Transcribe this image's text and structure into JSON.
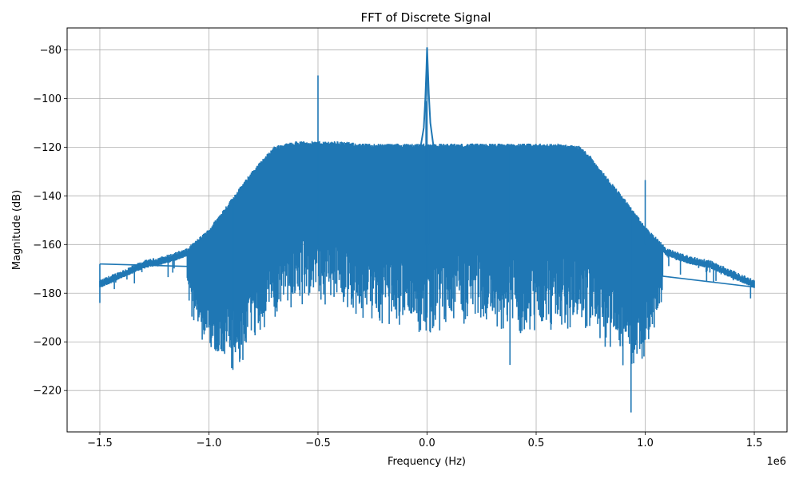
{
  "chart_data": {
    "type": "line",
    "title": "FFT of Discrete Signal",
    "xlabel": "Frequency (Hz)",
    "ylabel": "Magnitude (dB)",
    "x_offset_label": "1e6",
    "xlim": [
      -1.65,
      1.65
    ],
    "ylim": [
      -237,
      -71
    ],
    "x_scale_note": "x values in units of 1e6 Hz",
    "xticks": [
      -1.5,
      -1.0,
      -0.5,
      0.0,
      0.5,
      1.0,
      1.5
    ],
    "xtick_labels": [
      "−1.5",
      "−1.0",
      "−0.5",
      "0.0",
      "0.5",
      "1.0",
      "1.5"
    ],
    "yticks": [
      -80,
      -100,
      -120,
      -140,
      -160,
      -180,
      -200,
      -220
    ],
    "ytick_labels": [
      "−80",
      "−100",
      "−120",
      "−140",
      "−160",
      "−180",
      "−200",
      "−220"
    ],
    "grid": true,
    "line_color": "#1f77b4",
    "series": [
      {
        "upper_envelope": {
          "x": [
            -1.5,
            -1.4,
            -1.3,
            -1.2,
            -1.1,
            -1.0,
            -0.9,
            -0.8,
            -0.75,
            -0.7,
            -0.6,
            -0.5,
            -0.4,
            -0.3,
            -0.2,
            -0.1,
            0.0,
            0.1,
            0.2,
            0.3,
            0.4,
            0.5,
            0.6,
            0.7,
            0.75,
            0.8,
            0.9,
            1.0,
            1.1,
            1.2,
            1.3,
            1.4,
            1.5
          ],
          "y": [
            -176,
            -172,
            -168,
            -166,
            -163,
            -155,
            -143,
            -131,
            -126,
            -121,
            -119,
            -119,
            -119,
            -120,
            -120,
            -120,
            -120,
            -120,
            -120,
            -120,
            -120,
            -120,
            -120,
            -121,
            -125,
            -131,
            -142,
            -154,
            -163,
            -166,
            -168,
            -172,
            -176
          ]
        },
        "lower_envelope": {
          "x": [
            -1.1,
            -1.05,
            -1.0,
            -0.95,
            -0.9,
            -0.85,
            -0.8,
            -0.7,
            -0.6,
            -0.5,
            -0.4,
            -0.3,
            -0.2,
            -0.1,
            0.0,
            0.1,
            0.2,
            0.3,
            0.4,
            0.5,
            0.6,
            0.7,
            0.8,
            0.85,
            0.9,
            0.95,
            1.0,
            1.05,
            1.08
          ],
          "y": [
            -175,
            -195,
            -202,
            -205,
            -206,
            -203,
            -195,
            -185,
            -180,
            -178,
            -180,
            -185,
            -187,
            -190,
            -192,
            -188,
            -186,
            -188,
            -190,
            -192,
            -190,
            -188,
            -195,
            -200,
            -204,
            -206,
            -200,
            -190,
            -176
          ]
        },
        "spikes": [
          {
            "x": 0.0,
            "y": -79
          },
          {
            "x": -0.5,
            "y": -90.5
          },
          {
            "x": 1.0,
            "y": -133.5
          },
          {
            "x": -0.005,
            "y": -101
          },
          {
            "x": 0.008,
            "y": -119
          },
          {
            "x": 0.38,
            "y": -209.5
          },
          {
            "x": 0.935,
            "y": -229
          },
          {
            "x": -0.89,
            "y": -211.5
          },
          {
            "x": 0.0,
            "y": -190
          }
        ],
        "wrap_segments": [
          {
            "x": [
              -1.5,
              -1.1
            ],
            "y": [
              -168,
              -169
            ]
          },
          {
            "x": [
              1.08,
              1.5
            ],
            "y": [
              -173,
              -177.5
            ]
          }
        ]
      }
    ]
  }
}
